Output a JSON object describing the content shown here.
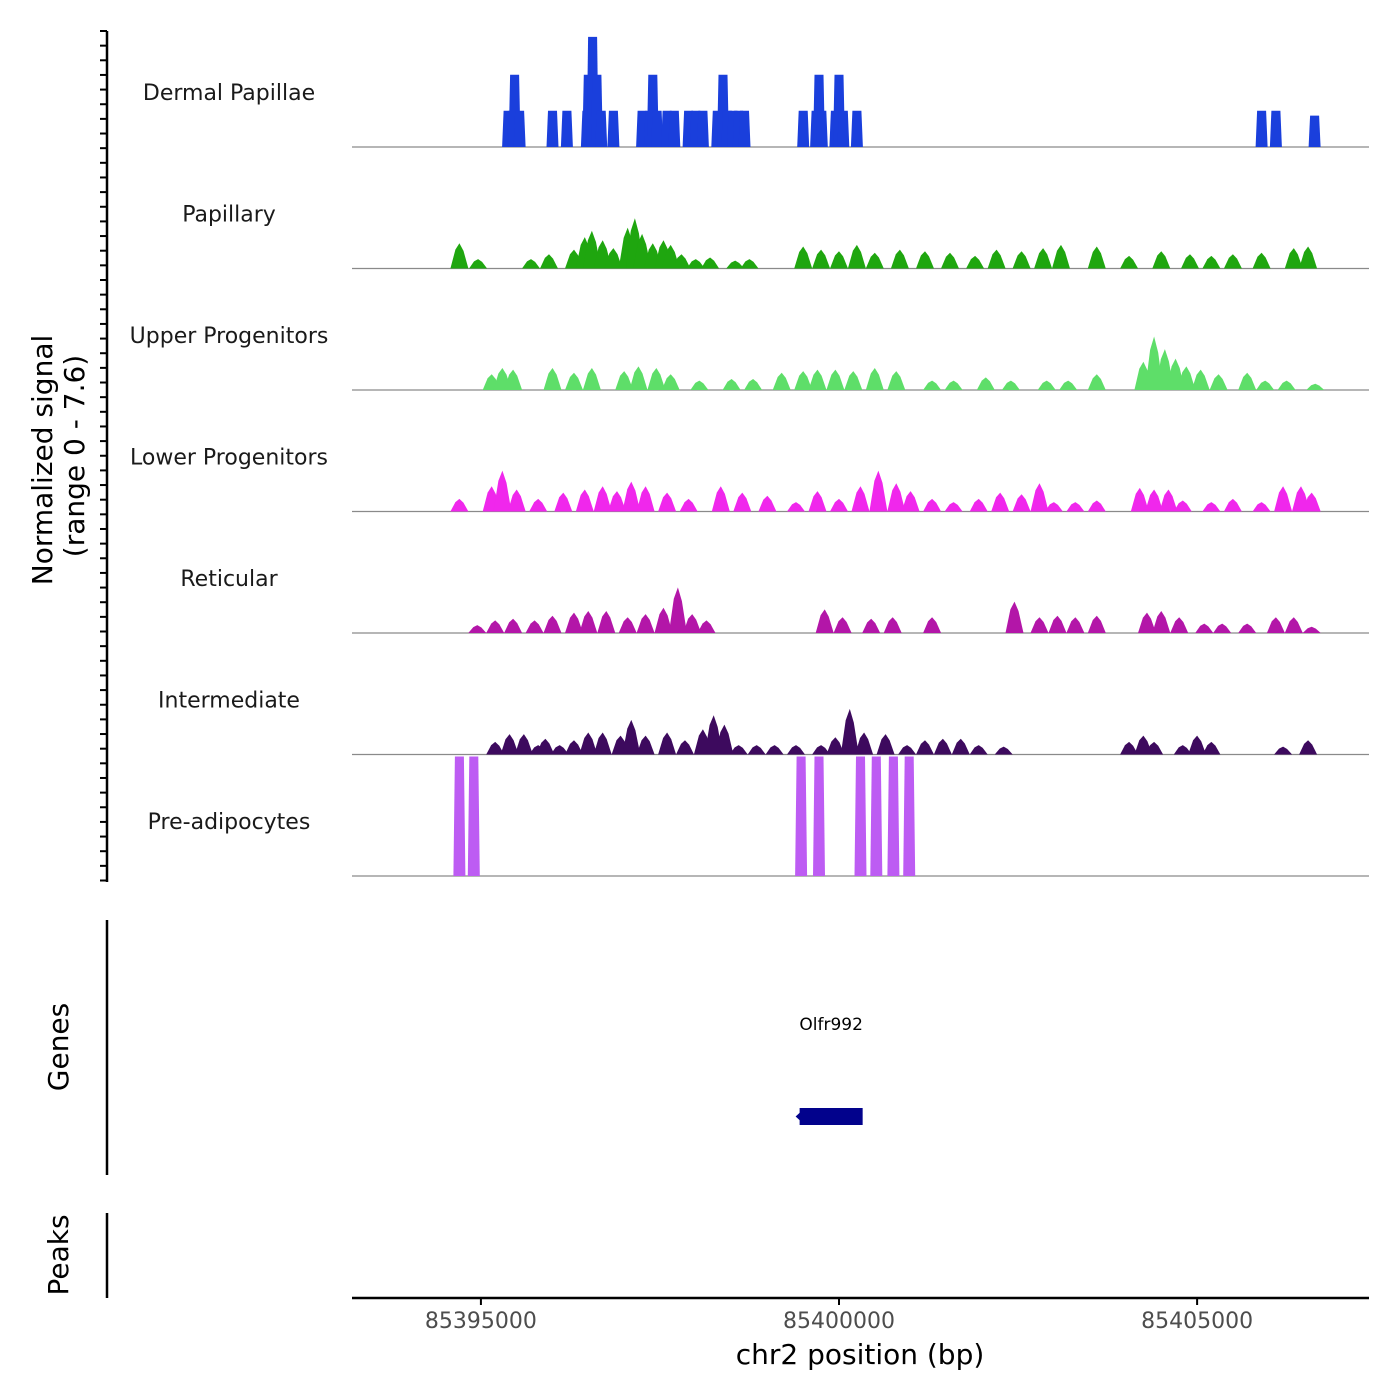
{
  "chart_data": {
    "type": "area",
    "title": "",
    "ylabel": "Normalized signal",
    "ylabel_range": "(range 0 - 7.6)",
    "ylim": [
      0,
      7.6
    ],
    "xlabel": "chr2 position (bp)",
    "xlim": [
      85393200,
      85407400
    ],
    "xticks": [
      85395000,
      85400000,
      85405000
    ],
    "xtick_labels": [
      "85395000",
      "85400000",
      "85405000"
    ],
    "tracks": [
      {
        "name": "Dermal Papillae",
        "color": "#1a3fdc",
        "style": "bars",
        "peaks": [
          [
            85395380,
            2.3
          ],
          [
            85395450,
            2.3
          ],
          [
            85395470,
            4.6
          ],
          [
            85395540,
            2.3
          ],
          [
            85396000,
            2.3
          ],
          [
            85396200,
            2.3
          ],
          [
            85396480,
            2.3
          ],
          [
            85396500,
            4.6
          ],
          [
            85396560,
            7.0
          ],
          [
            85396620,
            4.6
          ],
          [
            85396680,
            2.3
          ],
          [
            85396850,
            2.3
          ],
          [
            85397250,
            2.3
          ],
          [
            85397360,
            2.3
          ],
          [
            85397400,
            4.6
          ],
          [
            85397460,
            2.3
          ],
          [
            85397600,
            2.3
          ],
          [
            85397700,
            2.3
          ],
          [
            85397900,
            2.3
          ],
          [
            85398000,
            2.3
          ],
          [
            85398100,
            2.3
          ],
          [
            85398300,
            2.3
          ],
          [
            85398380,
            4.6
          ],
          [
            85398440,
            2.3
          ],
          [
            85398520,
            2.3
          ],
          [
            85398600,
            2.3
          ],
          [
            85398680,
            2.3
          ],
          [
            85399500,
            2.3
          ],
          [
            85399680,
            2.3
          ],
          [
            85399720,
            4.6
          ],
          [
            85399760,
            2.3
          ],
          [
            85399950,
            2.3
          ],
          [
            85400000,
            4.6
          ],
          [
            85400060,
            2.3
          ],
          [
            85400250,
            2.3
          ],
          [
            85405900,
            2.3
          ],
          [
            85406100,
            2.3
          ],
          [
            85406640,
            2.0
          ]
        ]
      },
      {
        "name": "Papillary",
        "color": "#1fa60f",
        "style": "area",
        "peaks": [
          [
            85394700,
            1.6
          ],
          [
            85394960,
            0.6
          ],
          [
            85395700,
            0.6
          ],
          [
            85395950,
            0.9
          ],
          [
            85396300,
            1.2
          ],
          [
            85396450,
            2.0
          ],
          [
            85396550,
            2.4
          ],
          [
            85396700,
            1.8
          ],
          [
            85396850,
            1.3
          ],
          [
            85397050,
            2.6
          ],
          [
            85397150,
            3.2
          ],
          [
            85397250,
            2.2
          ],
          [
            85397400,
            1.6
          ],
          [
            85397550,
            1.8
          ],
          [
            85397650,
            1.5
          ],
          [
            85397800,
            0.9
          ],
          [
            85398000,
            0.6
          ],
          [
            85398200,
            0.7
          ],
          [
            85398550,
            0.5
          ],
          [
            85398750,
            0.6
          ],
          [
            85399500,
            1.4
          ],
          [
            85399750,
            1.2
          ],
          [
            85400000,
            1.1
          ],
          [
            85400250,
            1.5
          ],
          [
            85400500,
            1.0
          ],
          [
            85400850,
            1.2
          ],
          [
            85401200,
            1.1
          ],
          [
            85401550,
            1.0
          ],
          [
            85401900,
            0.8
          ],
          [
            85402200,
            1.2
          ],
          [
            85402550,
            1.1
          ],
          [
            85402850,
            1.3
          ],
          [
            85403100,
            1.5
          ],
          [
            85403600,
            1.4
          ],
          [
            85404050,
            0.8
          ],
          [
            85404500,
            1.1
          ],
          [
            85404900,
            0.9
          ],
          [
            85405200,
            0.8
          ],
          [
            85405500,
            0.9
          ],
          [
            85405900,
            1.0
          ],
          [
            85406350,
            1.3
          ],
          [
            85406550,
            1.4
          ]
        ]
      },
      {
        "name": "Upper Progenitors",
        "color": "#5ede69",
        "style": "area",
        "peaks": [
          [
            85395150,
            1.0
          ],
          [
            85395300,
            1.4
          ],
          [
            85395450,
            1.3
          ],
          [
            85396000,
            1.4
          ],
          [
            85396300,
            1.1
          ],
          [
            85396550,
            1.4
          ],
          [
            85397000,
            1.2
          ],
          [
            85397200,
            1.5
          ],
          [
            85397450,
            1.4
          ],
          [
            85397650,
            1.0
          ],
          [
            85398050,
            0.6
          ],
          [
            85398500,
            0.7
          ],
          [
            85398800,
            0.7
          ],
          [
            85399200,
            1.1
          ],
          [
            85399500,
            1.2
          ],
          [
            85399700,
            1.3
          ],
          [
            85399950,
            1.3
          ],
          [
            85400200,
            1.2
          ],
          [
            85400500,
            1.4
          ],
          [
            85400800,
            1.2
          ],
          [
            85401300,
            0.6
          ],
          [
            85401600,
            0.6
          ],
          [
            85402050,
            0.8
          ],
          [
            85402400,
            0.6
          ],
          [
            85402900,
            0.6
          ],
          [
            85403200,
            0.6
          ],
          [
            85403600,
            1.0
          ],
          [
            85404250,
            1.8
          ],
          [
            85404400,
            3.4
          ],
          [
            85404550,
            2.6
          ],
          [
            85404700,
            2.0
          ],
          [
            85404850,
            1.5
          ],
          [
            85405050,
            1.3
          ],
          [
            85405300,
            1.0
          ],
          [
            85405700,
            1.1
          ],
          [
            85405950,
            0.6
          ],
          [
            85406250,
            0.6
          ],
          [
            85406650,
            0.4
          ]
        ]
      },
      {
        "name": "Lower Progenitors",
        "color": "#f027ec",
        "style": "area",
        "peaks": [
          [
            85394700,
            0.8
          ],
          [
            85395150,
            1.6
          ],
          [
            85395300,
            2.6
          ],
          [
            85395500,
            1.4
          ],
          [
            85395800,
            0.8
          ],
          [
            85396150,
            1.2
          ],
          [
            85396450,
            1.4
          ],
          [
            85396700,
            1.6
          ],
          [
            85396900,
            1.3
          ],
          [
            85397100,
            1.9
          ],
          [
            85397300,
            1.6
          ],
          [
            85397600,
            1.2
          ],
          [
            85397900,
            0.8
          ],
          [
            85398350,
            1.6
          ],
          [
            85398650,
            1.2
          ],
          [
            85399000,
            1.0
          ],
          [
            85399400,
            0.6
          ],
          [
            85399700,
            1.3
          ],
          [
            85400000,
            0.8
          ],
          [
            85400300,
            1.6
          ],
          [
            85400550,
            2.6
          ],
          [
            85400800,
            1.8
          ],
          [
            85401000,
            1.3
          ],
          [
            85401300,
            0.8
          ],
          [
            85401600,
            0.6
          ],
          [
            85401950,
            0.8
          ],
          [
            85402250,
            1.2
          ],
          [
            85402550,
            1.1
          ],
          [
            85402800,
            1.8
          ],
          [
            85403000,
            0.6
          ],
          [
            85403300,
            0.6
          ],
          [
            85403600,
            0.7
          ],
          [
            85404200,
            1.5
          ],
          [
            85404400,
            1.4
          ],
          [
            85404600,
            1.4
          ],
          [
            85404800,
            0.7
          ],
          [
            85405200,
            0.6
          ],
          [
            85405500,
            0.8
          ],
          [
            85405900,
            0.6
          ],
          [
            85406200,
            1.6
          ],
          [
            85406450,
            1.6
          ],
          [
            85406600,
            1.2
          ]
        ]
      },
      {
        "name": "Reticular",
        "color": "#b316a8",
        "style": "area",
        "peaks": [
          [
            85394950,
            0.5
          ],
          [
            85395200,
            0.8
          ],
          [
            85395450,
            0.9
          ],
          [
            85395750,
            0.8
          ],
          [
            85396000,
            1.1
          ],
          [
            85396300,
            1.3
          ],
          [
            85396500,
            1.4
          ],
          [
            85396750,
            1.4
          ],
          [
            85397050,
            1.0
          ],
          [
            85397300,
            1.2
          ],
          [
            85397550,
            1.6
          ],
          [
            85397750,
            2.9
          ],
          [
            85397950,
            1.2
          ],
          [
            85398150,
            0.8
          ],
          [
            85399800,
            1.5
          ],
          [
            85400050,
            1.0
          ],
          [
            85400450,
            0.9
          ],
          [
            85400750,
            1.0
          ],
          [
            85401300,
            1.0
          ],
          [
            85402450,
            2.0
          ],
          [
            85402800,
            1.0
          ],
          [
            85403050,
            1.1
          ],
          [
            85403300,
            1.0
          ],
          [
            85403600,
            1.1
          ],
          [
            85404300,
            1.3
          ],
          [
            85404500,
            1.4
          ],
          [
            85404750,
            1.0
          ],
          [
            85405100,
            0.6
          ],
          [
            85405350,
            0.6
          ],
          [
            85405700,
            0.6
          ],
          [
            85406100,
            1.0
          ],
          [
            85406350,
            1.0
          ],
          [
            85406600,
            0.4
          ]
        ]
      },
      {
        "name": "Intermediate",
        "color": "#3d0a5e",
        "style": "area",
        "peaks": [
          [
            85395200,
            0.8
          ],
          [
            85395400,
            1.3
          ],
          [
            85395600,
            1.3
          ],
          [
            85395800,
            0.6
          ],
          [
            85395900,
            1.0
          ],
          [
            85396100,
            0.6
          ],
          [
            85396300,
            0.9
          ],
          [
            85396500,
            1.4
          ],
          [
            85396700,
            1.4
          ],
          [
            85396950,
            1.2
          ],
          [
            85397100,
            2.2
          ],
          [
            85397300,
            1.2
          ],
          [
            85397600,
            1.4
          ],
          [
            85397850,
            0.9
          ],
          [
            85398100,
            1.6
          ],
          [
            85398250,
            2.5
          ],
          [
            85398400,
            1.9
          ],
          [
            85398600,
            0.6
          ],
          [
            85398850,
            0.6
          ],
          [
            85399100,
            0.6
          ],
          [
            85399400,
            0.6
          ],
          [
            85399750,
            0.6
          ],
          [
            85399950,
            1.1
          ],
          [
            85400150,
            2.9
          ],
          [
            85400350,
            1.4
          ],
          [
            85400650,
            1.3
          ],
          [
            85400950,
            0.6
          ],
          [
            85401200,
            0.9
          ],
          [
            85401450,
            1.0
          ],
          [
            85401700,
            1.0
          ],
          [
            85401950,
            0.6
          ],
          [
            85402300,
            0.5
          ],
          [
            85404050,
            0.8
          ],
          [
            85404250,
            1.2
          ],
          [
            85404400,
            0.8
          ],
          [
            85404800,
            0.6
          ],
          [
            85405000,
            1.2
          ],
          [
            85405200,
            0.8
          ],
          [
            85406200,
            0.5
          ],
          [
            85406550,
            0.9
          ]
        ]
      },
      {
        "name": "Pre-adipocytes",
        "color": "#bd5cf3",
        "style": "bars",
        "peaks": [
          [
            85394700,
            7.6
          ],
          [
            85394900,
            7.6
          ],
          [
            85399470,
            7.6
          ],
          [
            85399720,
            7.6
          ],
          [
            85400300,
            7.6
          ],
          [
            85400520,
            7.6
          ],
          [
            85400760,
            7.6
          ],
          [
            85400980,
            7.6
          ]
        ]
      }
    ],
    "genes": [
      {
        "name": "Olfr992",
        "start": 85399450,
        "end": 85400330,
        "strand": "-",
        "color": "#02028c"
      }
    ],
    "gene_track_label": "Genes",
    "peak_track_label": "Peaks",
    "peaks": []
  }
}
